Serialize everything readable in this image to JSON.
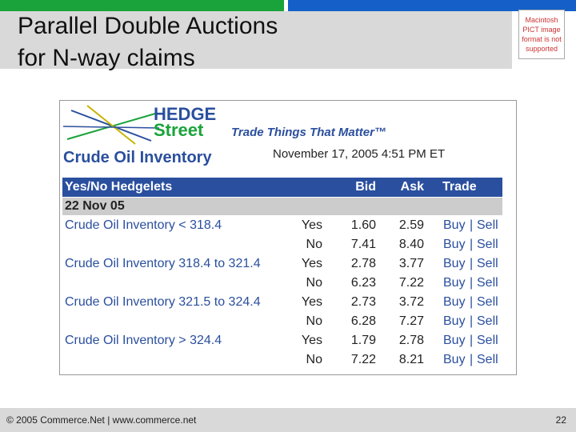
{
  "slide": {
    "title_lines": [
      "Parallel Double Auctions",
      "for N-way claims"
    ],
    "placeholder": "Macintosh PICT image format is not supported",
    "footer": "© 2005 Commerce.Net | www.commerce.net",
    "page_number": "22"
  },
  "screenshot": {
    "logo": {
      "hedge": "HEDGE",
      "street": "Street",
      "tagline": "Trade Things That Matter™"
    },
    "heading": "Crude Oil Inventory",
    "timestamp": "November 17, 2005 4:51 PM ET",
    "table": {
      "header": [
        "Yes/No Hedgelets",
        "Bid",
        "Ask",
        "Trade"
      ],
      "group": "22 Nov 05",
      "rows": [
        {
          "name": "Crude Oil Inventory < 318.4",
          "side": "Yes",
          "bid": "1.60",
          "ask": "2.59",
          "buy": "Buy",
          "sep": "|",
          "sell": "Sell"
        },
        {
          "side": "No",
          "bid": "7.41",
          "ask": "8.40",
          "buy": "Buy",
          "sep": "|",
          "sell": "Sell"
        },
        {
          "name": "Crude Oil Inventory 318.4 to 321.4",
          "side": "Yes",
          "bid": "2.78",
          "ask": "3.77",
          "buy": "Buy",
          "sep": "|",
          "sell": "Sell"
        },
        {
          "side": "No",
          "bid": "6.23",
          "ask": "7.22",
          "buy": "Buy",
          "sep": "|",
          "sell": "Sell"
        },
        {
          "name": "Crude Oil Inventory 321.5 to 324.4",
          "side": "Yes",
          "bid": "2.73",
          "ask": "3.72",
          "buy": "Buy",
          "sep": "|",
          "sell": "Sell"
        },
        {
          "side": "No",
          "bid": "6.28",
          "ask": "7.27",
          "buy": "Buy",
          "sep": "|",
          "sell": "Sell"
        },
        {
          "name": "Crude Oil Inventory > 324.4",
          "side": "Yes",
          "bid": "1.79",
          "ask": "2.78",
          "buy": "Buy",
          "sep": "|",
          "sell": "Sell"
        },
        {
          "side": "No",
          "bid": "7.22",
          "ask": "8.21",
          "buy": "Buy",
          "sep": "|",
          "sell": "Sell"
        }
      ]
    }
  }
}
